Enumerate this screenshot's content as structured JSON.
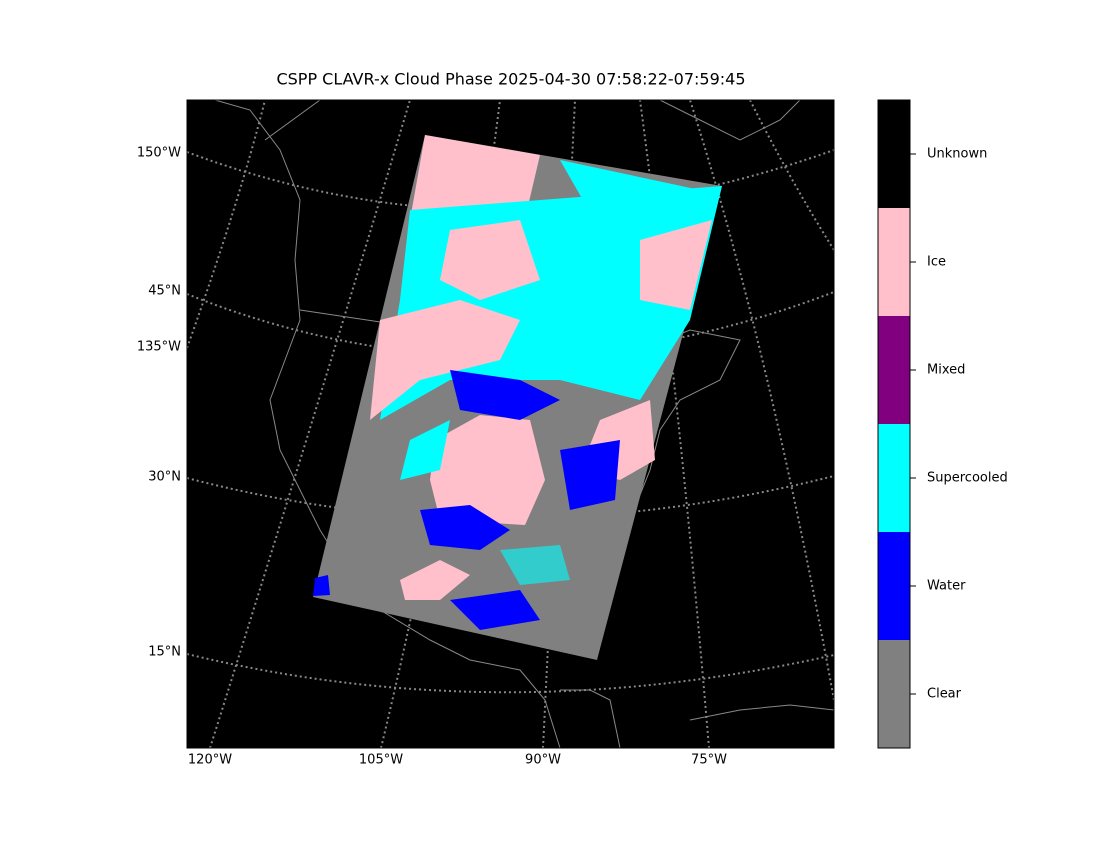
{
  "header": {
    "title": "CSPP CLAVR-x Cloud Phase 2025-04-30 07:58:22-07:59:45"
  },
  "map": {
    "left_labels": [
      "150°W",
      "45°N",
      "135°W",
      "30°N",
      "15°N"
    ],
    "bottom_labels": [
      "120°W",
      "105°W",
      "90°W",
      "75°W"
    ]
  },
  "colorbar": {
    "classes": [
      {
        "name": "Unknown",
        "color": "#000000"
      },
      {
        "name": "Ice",
        "color": "#ffc0cb"
      },
      {
        "name": "Mixed",
        "color": "#800080"
      },
      {
        "name": "Supercooled",
        "color": "#00ffff"
      },
      {
        "name": "Water",
        "color": "#0000ff"
      },
      {
        "name": "Clear",
        "color": "#808080"
      }
    ]
  }
}
